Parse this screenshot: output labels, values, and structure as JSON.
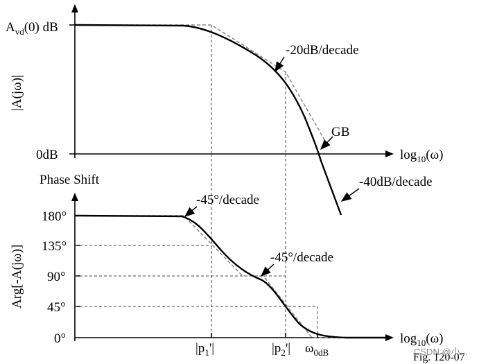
{
  "magnitude": {
    "y_label_main": "A",
    "y_label_sub": "vd",
    "y_label_tail": "(0) dB",
    "y_axis_name": "|A(jω)|",
    "zero_label": "0dB",
    "x_label_main": "log",
    "x_label_sub": "10",
    "x_label_tail": "(ω)",
    "annotation_1": "-20dB/decade",
    "annotation_gb": "GB",
    "annotation_2": "-40dB/decade"
  },
  "phase": {
    "title": "Phase Shift",
    "y_axis_name": "Arg[-A(jω)]",
    "ticks": [
      "180°",
      "135°",
      "90°",
      "45°",
      "0°"
    ],
    "x_label_main": "log",
    "x_label_sub": "10",
    "x_label_tail": "(ω)",
    "annotation_1": "-45°/decade",
    "annotation_2": "-45°/decade",
    "p1_label": "|p",
    "p1_sub": "1",
    "p1_tail": "'|",
    "p2_label": "|p",
    "p2_sub": "2",
    "p2_tail": "'|",
    "w0_label": "ω",
    "w0_sub": "0dB"
  },
  "footer": {
    "fig_label": "Fig. 120-07",
    "watermark": "CSDN @小..."
  }
}
